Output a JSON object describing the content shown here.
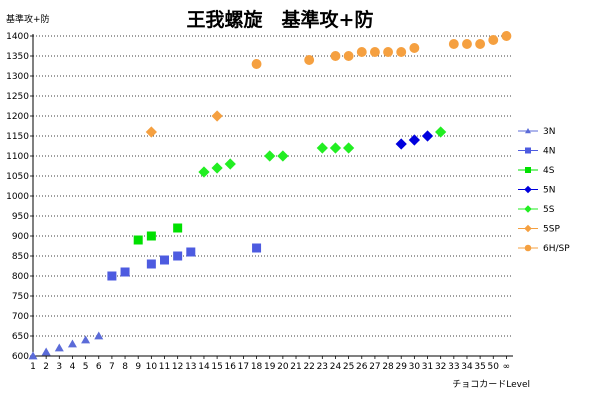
{
  "chart_data": {
    "type": "scatter",
    "title": "王我螺旋　基準攻+防",
    "ylabel": "基準攻+防",
    "xlabel": "チョコカードLevel",
    "ylim": [
      600,
      1400
    ],
    "ytick_step": 50,
    "grid": "horizontal",
    "legend_position": "right",
    "x_tick_labels": [
      "1",
      "2",
      "3",
      "4",
      "5",
      "6",
      "7",
      "8",
      "9",
      "10",
      "11",
      "12",
      "13",
      "14",
      "15",
      "16",
      "17",
      "18",
      "19",
      "20",
      "21",
      "22",
      "23",
      "24",
      "25",
      "26",
      "27",
      "28",
      "29",
      "30",
      "31",
      "32",
      "33",
      "34",
      "35",
      "50",
      "∞"
    ],
    "series": [
      {
        "name": "3N",
        "color": "#5b6bd8",
        "marker": "triangle",
        "points": [
          [
            1,
            600
          ],
          [
            2,
            610
          ],
          [
            3,
            620
          ],
          [
            4,
            630
          ],
          [
            5,
            640
          ],
          [
            6,
            650
          ]
        ]
      },
      {
        "name": "4N",
        "color": "#4d5be0",
        "marker": "square",
        "points": [
          [
            7,
            800
          ],
          [
            8,
            810
          ],
          [
            10,
            830
          ],
          [
            11,
            840
          ],
          [
            12,
            850
          ],
          [
            13,
            860
          ],
          [
            18,
            870
          ]
        ]
      },
      {
        "name": "4S",
        "color": "#00e000",
        "marker": "square",
        "points": [
          [
            9,
            890
          ],
          [
            10,
            900
          ],
          [
            12,
            920
          ]
        ]
      },
      {
        "name": "5N",
        "color": "#0000dd",
        "marker": "diamond",
        "points": [
          [
            29,
            1130
          ],
          [
            30,
            1140
          ],
          [
            31,
            1150
          ]
        ]
      },
      {
        "name": "5S",
        "color": "#22ee22",
        "marker": "diamond",
        "points": [
          [
            14,
            1060
          ],
          [
            15,
            1070
          ],
          [
            16,
            1080
          ],
          [
            19,
            1100
          ],
          [
            20,
            1100
          ],
          [
            23,
            1120
          ],
          [
            24,
            1120
          ],
          [
            25,
            1120
          ],
          [
            32,
            1160
          ]
        ]
      },
      {
        "name": "5SP",
        "color": "#f5a040",
        "marker": "diamond",
        "points": [
          [
            10,
            1160
          ],
          [
            15,
            1200
          ]
        ]
      },
      {
        "name": "6H/SP",
        "color": "#f5a040",
        "marker": "circle",
        "points": [
          [
            18,
            1330
          ],
          [
            22,
            1340
          ],
          [
            24,
            1350
          ],
          [
            25,
            1350
          ],
          [
            26,
            1360
          ],
          [
            27,
            1360
          ],
          [
            28,
            1360
          ],
          [
            29,
            1360
          ],
          [
            30,
            1370
          ],
          [
            33,
            1380
          ],
          [
            34,
            1380
          ],
          [
            35,
            1380
          ],
          [
            36,
            1390
          ],
          [
            37,
            1400
          ]
        ]
      }
    ]
  }
}
